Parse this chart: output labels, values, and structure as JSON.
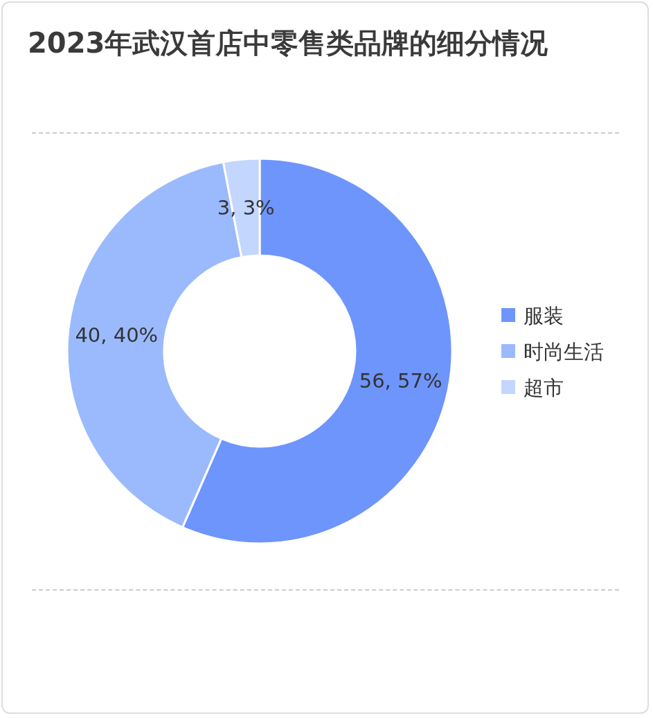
{
  "chart_data": {
    "type": "donut",
    "title": "2023年武汉首店中零售类品牌的细分情况",
    "categories": [
      "服装",
      "时尚生活",
      "超市"
    ],
    "values": [
      56,
      40,
      3
    ],
    "colors": [
      "#6e95fc",
      "#9bbafd",
      "#c2d6fe"
    ],
    "value_labels": [
      "56, 57%",
      "40, 40%",
      "3, 3%"
    ],
    "legend": "right"
  }
}
